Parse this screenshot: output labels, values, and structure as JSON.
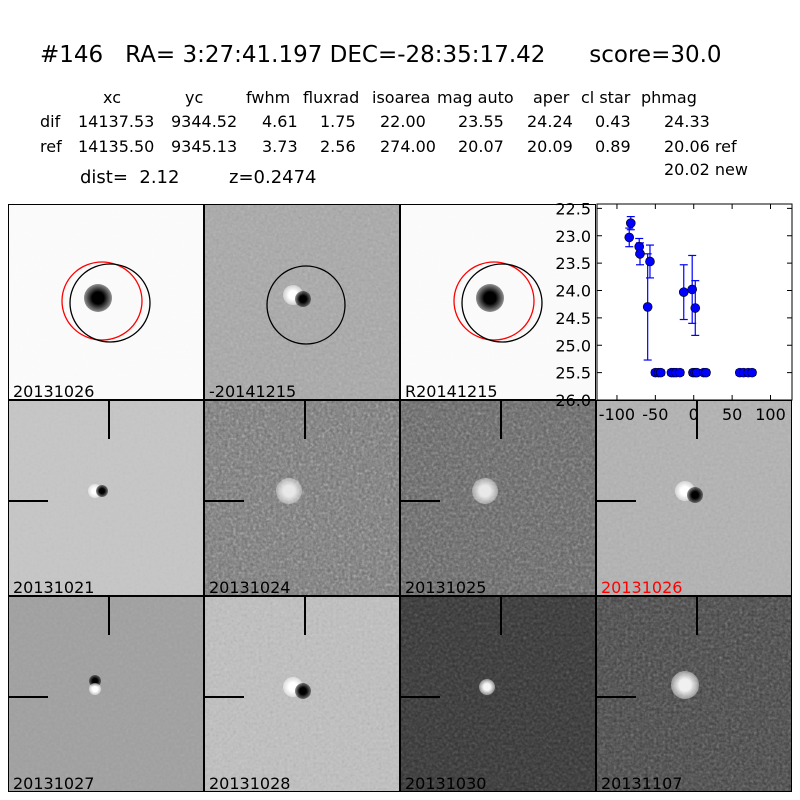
{
  "title": "#146   RA= 3:27:41.197 DEC=-28:35:17.42      score=30.0",
  "table": {
    "headers": [
      "xc",
      "yc",
      "fwhm",
      "fluxrad",
      "isoarea",
      "mag auto",
      "aper",
      "cl star",
      "phmag"
    ],
    "rows": [
      {
        "label": "dif",
        "values": [
          "14137.53",
          "9344.52",
          "4.61",
          "1.75",
          "22.00",
          "23.55",
          "24.24",
          "0.43",
          "24.33"
        ]
      },
      {
        "label": "ref",
        "values": [
          "14135.50",
          "9345.13",
          "3.73",
          "2.56",
          "274.00",
          "20.07",
          "20.09",
          "0.89",
          "20.06 ref"
        ]
      }
    ],
    "extra": "20.02 new"
  },
  "dist": "dist=  2.12",
  "z": "z=0.2474",
  "panels": [
    {
      "label": "20131026",
      "color": "#000000"
    },
    {
      "label": "-20141215",
      "color": "#000000"
    },
    {
      "label": "R20141215",
      "color": "#000000"
    },
    {
      "label": "20131021",
      "color": "#000000"
    },
    {
      "label": "20131024",
      "color": "#000000"
    },
    {
      "label": "20131025",
      "color": "#000000"
    },
    {
      "label": "20131026",
      "color": "#ff0000"
    },
    {
      "label": "20131027",
      "color": "#000000"
    },
    {
      "label": "20131028",
      "color": "#000000"
    },
    {
      "label": "20131030",
      "color": "#000000"
    },
    {
      "label": "20131107",
      "color": "#000000"
    }
  ],
  "chart_data": {
    "type": "scatter",
    "title": "",
    "xlabel": "",
    "ylabel": "",
    "xlim": [
      -126,
      128
    ],
    "ylim": [
      26.0,
      22.42
    ],
    "y_inverted": true,
    "xticks": [
      "-100",
      "-50",
      "0",
      "50",
      "100"
    ],
    "yticks": [
      "22.5",
      "23.0",
      "23.5",
      "24.0",
      "24.5",
      "25.0",
      "25.5",
      "26.0"
    ],
    "color": "#0000ff",
    "points": [
      {
        "x": -84,
        "y": 23.03,
        "err": 0.17
      },
      {
        "x": -82,
        "y": 22.77,
        "err": 0.12
      },
      {
        "x": -71,
        "y": 23.2,
        "err": 0.15
      },
      {
        "x": -70,
        "y": 23.33,
        "err": 0.2
      },
      {
        "x": -60,
        "y": 24.3,
        "err": 0.97
      },
      {
        "x": -57,
        "y": 23.47,
        "err": 0.3
      },
      {
        "x": -13,
        "y": 24.03,
        "err": 0.5
      },
      {
        "x": -2,
        "y": 23.98,
        "err": 0.62
      },
      {
        "x": 2,
        "y": 24.32,
        "err": 0.5
      },
      {
        "x": -50,
        "y": 25.5,
        "err": 0.05
      },
      {
        "x": -46,
        "y": 25.5,
        "err": 0.05
      },
      {
        "x": -43,
        "y": 25.5,
        "err": 0.05
      },
      {
        "x": -29,
        "y": 25.5,
        "err": 0.05
      },
      {
        "x": -26,
        "y": 25.5,
        "err": 0.05
      },
      {
        "x": -23,
        "y": 25.5,
        "err": 0.05
      },
      {
        "x": -18,
        "y": 25.5,
        "err": 0.05
      },
      {
        "x": -1,
        "y": 25.5,
        "err": 0.05
      },
      {
        "x": 2,
        "y": 25.5,
        "err": 0.05
      },
      {
        "x": 4,
        "y": 25.5,
        "err": 0.05
      },
      {
        "x": 13,
        "y": 25.5,
        "err": 0.05
      },
      {
        "x": 16,
        "y": 25.5,
        "err": 0.05
      },
      {
        "x": 60,
        "y": 25.5,
        "err": 0.05
      },
      {
        "x": 65,
        "y": 25.5,
        "err": 0.05
      },
      {
        "x": 71,
        "y": 25.5,
        "err": 0.05
      },
      {
        "x": 76,
        "y": 25.5,
        "err": 0.05
      }
    ]
  }
}
